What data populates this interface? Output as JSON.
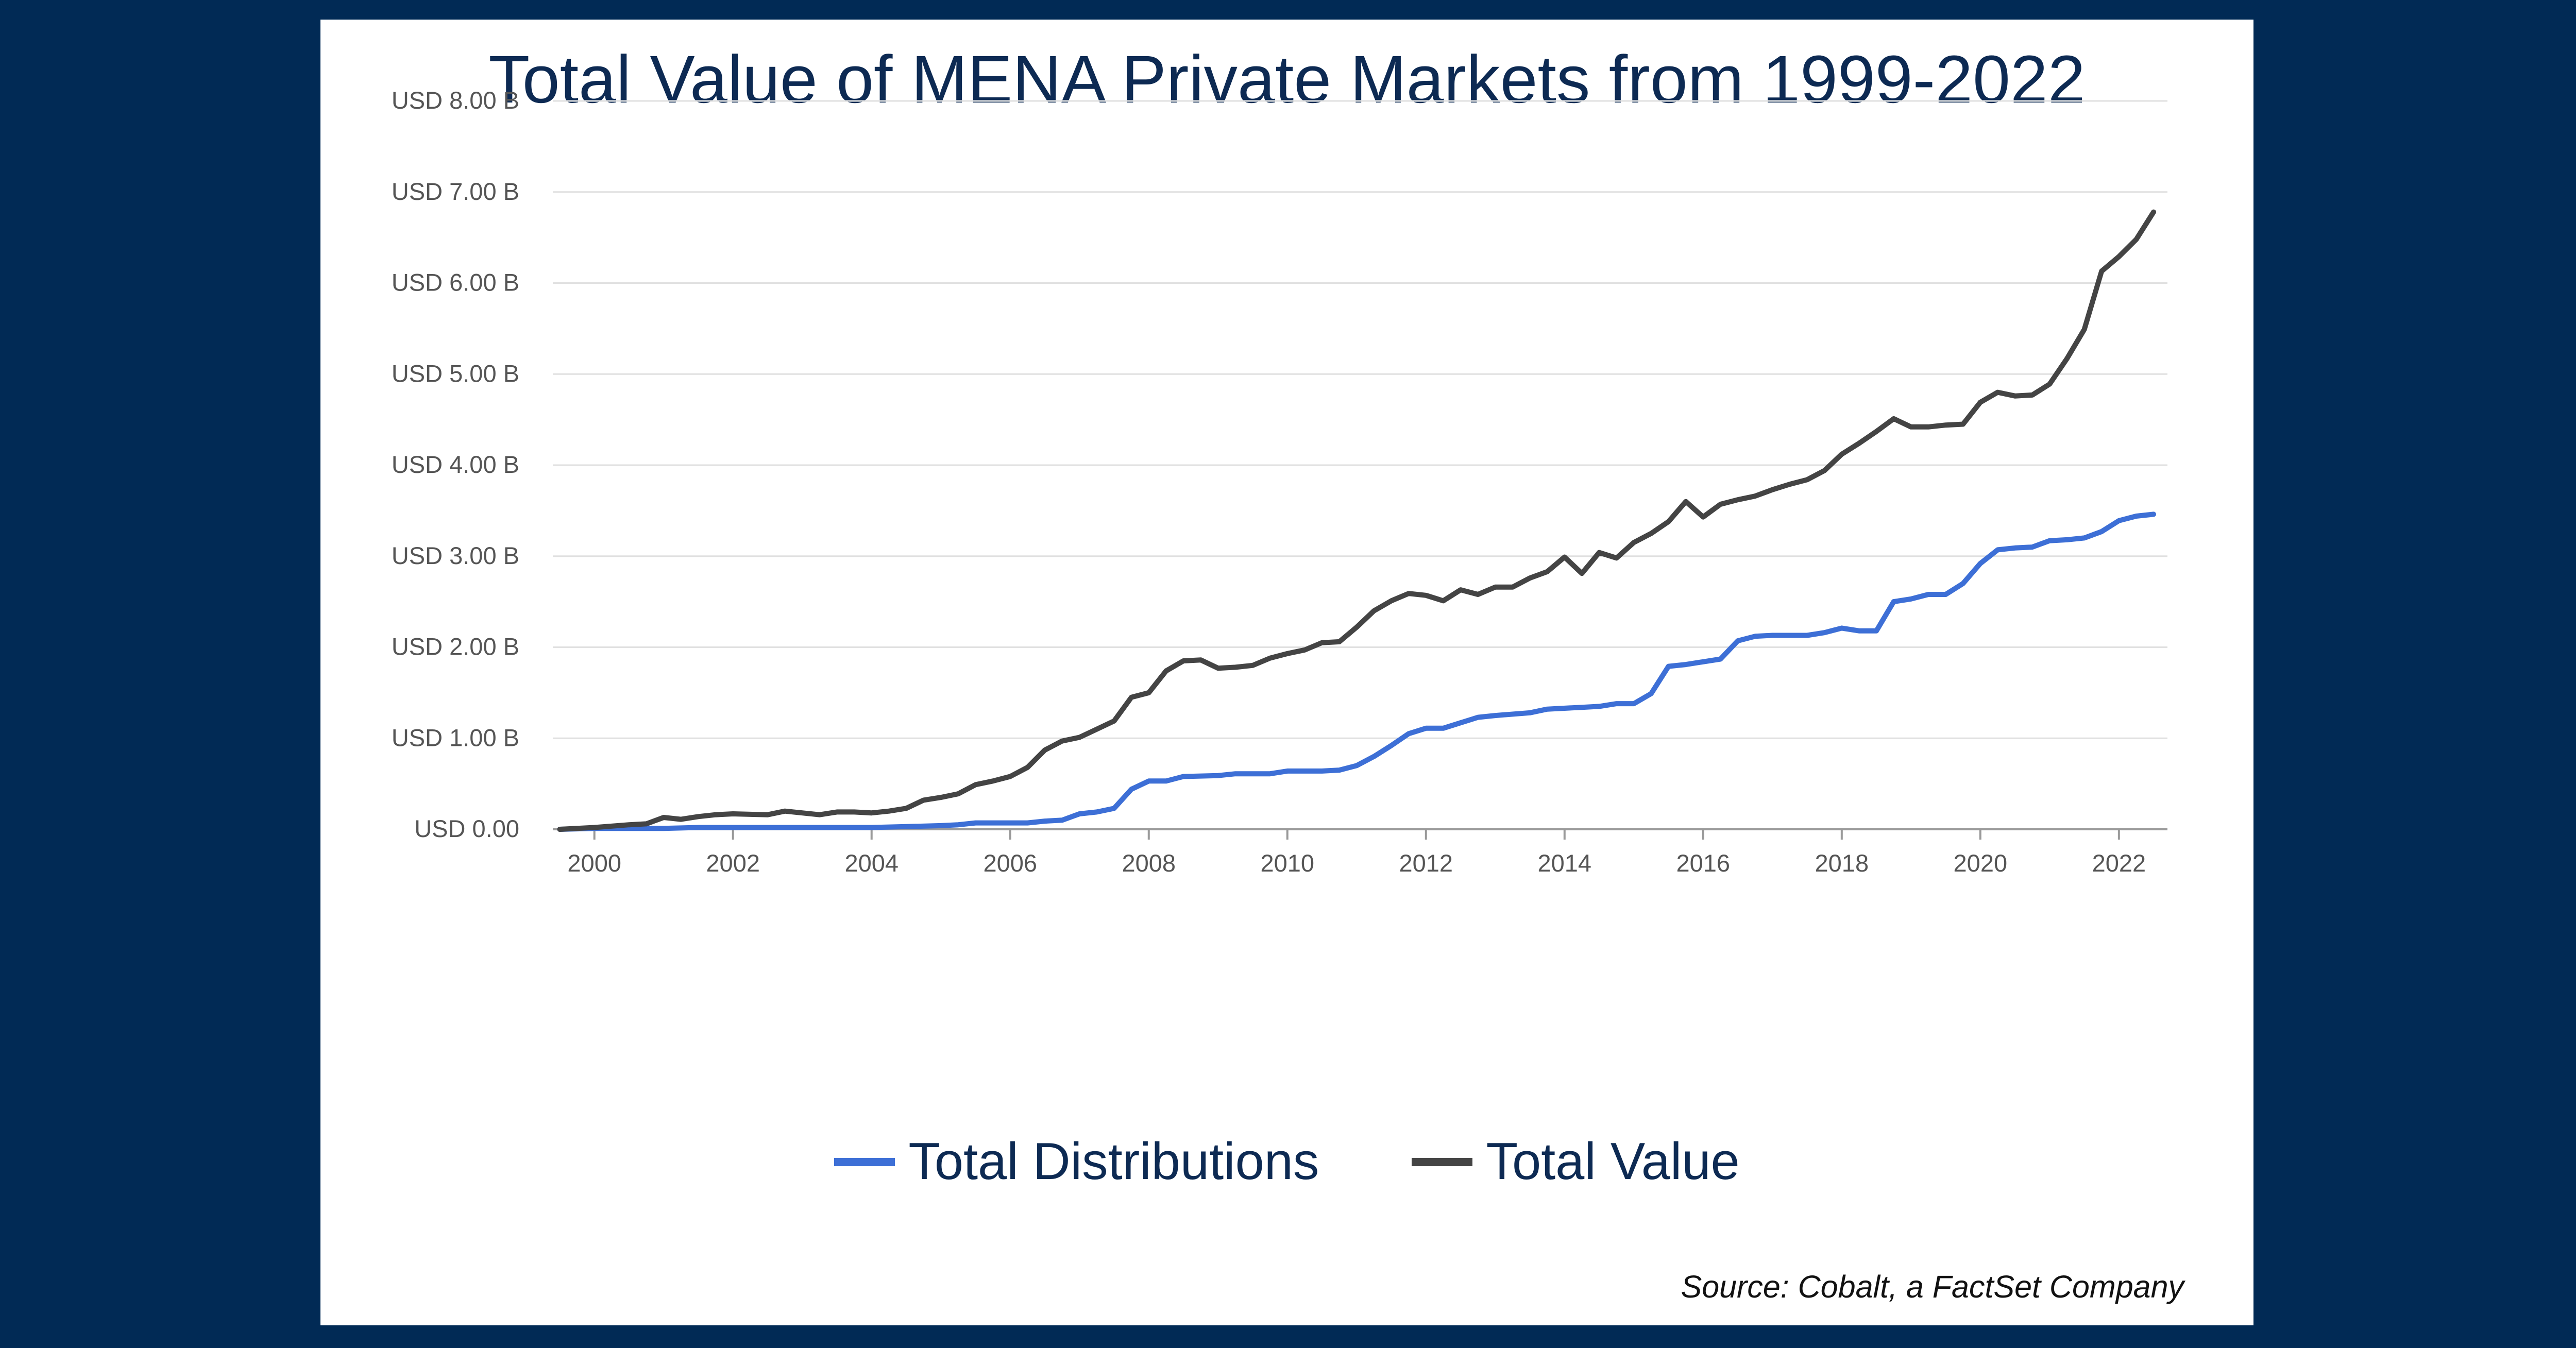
{
  "colors": {
    "background": "#012a55",
    "panel": "#ffffff",
    "title": "#0d2a53",
    "total_distributions": "#3d6fd6",
    "total_value": "#444444",
    "grid": "#e0e0e0",
    "tick_text": "#555555"
  },
  "source": "Source: Cobalt, a FactSet Company",
  "chart_data": {
    "type": "line",
    "title": "Total Value of MENA Private Markets from 1999-2022",
    "xlabel": "",
    "ylabel": "",
    "xlim": [
      1999.4,
      2022.7
    ],
    "ylim": [
      0,
      8
    ],
    "x_ticks": [
      2000,
      2002,
      2004,
      2006,
      2008,
      2010,
      2012,
      2014,
      2016,
      2018,
      2020,
      2022
    ],
    "x_tick_labels": [
      "2000",
      "2002",
      "2004",
      "2006",
      "2008",
      "2010",
      "2012",
      "2014",
      "2016",
      "2018",
      "2020",
      "2022"
    ],
    "y_ticks": [
      0,
      1,
      2,
      3,
      4,
      5,
      6,
      7,
      8
    ],
    "y_tick_labels": [
      "USD 0.00",
      "USD 1.00 B",
      "USD 2.00 B",
      "USD 3.00 B",
      "USD 4.00 B",
      "USD 5.00 B",
      "USD 6.00 B",
      "USD 7.00 B",
      "USD 8.00 B"
    ],
    "grid": true,
    "legend_position": "bottom",
    "series": [
      {
        "name": "Total Distributions",
        "color": "#3d6fd6",
        "points": [
          [
            1999.5,
            0.0
          ],
          [
            2000.0,
            0.01
          ],
          [
            2000.5,
            0.01
          ],
          [
            2001.0,
            0.01
          ],
          [
            2001.5,
            0.02
          ],
          [
            2002.0,
            0.02
          ],
          [
            2002.5,
            0.02
          ],
          [
            2003.0,
            0.02
          ],
          [
            2003.5,
            0.02
          ],
          [
            2004.0,
            0.02
          ],
          [
            2004.5,
            0.03
          ],
          [
            2005.0,
            0.04
          ],
          [
            2005.25,
            0.05
          ],
          [
            2005.5,
            0.07
          ],
          [
            2006.0,
            0.07
          ],
          [
            2006.25,
            0.07
          ],
          [
            2006.5,
            0.09
          ],
          [
            2006.75,
            0.1
          ],
          [
            2007.0,
            0.17
          ],
          [
            2007.25,
            0.19
          ],
          [
            2007.5,
            0.23
          ],
          [
            2007.75,
            0.44
          ],
          [
            2008.0,
            0.53
          ],
          [
            2008.25,
            0.53
          ],
          [
            2008.5,
            0.58
          ],
          [
            2009.0,
            0.59
          ],
          [
            2009.25,
            0.61
          ],
          [
            2009.75,
            0.61
          ],
          [
            2010.0,
            0.64
          ],
          [
            2010.5,
            0.64
          ],
          [
            2010.75,
            0.65
          ],
          [
            2011.0,
            0.7
          ],
          [
            2011.25,
            0.8
          ],
          [
            2011.5,
            0.92
          ],
          [
            2011.75,
            1.05
          ],
          [
            2012.0,
            1.11
          ],
          [
            2012.25,
            1.11
          ],
          [
            2012.5,
            1.17
          ],
          [
            2012.75,
            1.23
          ],
          [
            2013.0,
            1.25
          ],
          [
            2013.5,
            1.28
          ],
          [
            2013.75,
            1.32
          ],
          [
            2014.25,
            1.34
          ],
          [
            2014.5,
            1.35
          ],
          [
            2014.75,
            1.38
          ],
          [
            2015.0,
            1.38
          ],
          [
            2015.25,
            1.49
          ],
          [
            2015.5,
            1.79
          ],
          [
            2015.75,
            1.81
          ],
          [
            2016.0,
            1.84
          ],
          [
            2016.25,
            1.87
          ],
          [
            2016.5,
            2.07
          ],
          [
            2016.75,
            2.12
          ],
          [
            2017.0,
            2.13
          ],
          [
            2017.5,
            2.13
          ],
          [
            2017.75,
            2.16
          ],
          [
            2018.0,
            2.21
          ],
          [
            2018.25,
            2.18
          ],
          [
            2018.5,
            2.18
          ],
          [
            2018.75,
            2.5
          ],
          [
            2019.0,
            2.53
          ],
          [
            2019.25,
            2.58
          ],
          [
            2019.5,
            2.58
          ],
          [
            2019.75,
            2.7
          ],
          [
            2020.0,
            2.92
          ],
          [
            2020.25,
            3.07
          ],
          [
            2020.5,
            3.09
          ],
          [
            2020.75,
            3.1
          ],
          [
            2021.0,
            3.17
          ],
          [
            2021.25,
            3.18
          ],
          [
            2021.5,
            3.2
          ],
          [
            2021.75,
            3.27
          ],
          [
            2022.0,
            3.39
          ],
          [
            2022.25,
            3.44
          ],
          [
            2022.5,
            3.46
          ]
        ]
      },
      {
        "name": "Total Value",
        "color": "#444444",
        "points": [
          [
            1999.5,
            0.0
          ],
          [
            2000.0,
            0.02
          ],
          [
            2000.5,
            0.05
          ],
          [
            2000.75,
            0.06
          ],
          [
            2001.0,
            0.13
          ],
          [
            2001.25,
            0.11
          ],
          [
            2001.5,
            0.14
          ],
          [
            2001.75,
            0.16
          ],
          [
            2002.0,
            0.17
          ],
          [
            2002.5,
            0.16
          ],
          [
            2002.75,
            0.2
          ],
          [
            2003.25,
            0.16
          ],
          [
            2003.5,
            0.19
          ],
          [
            2003.75,
            0.19
          ],
          [
            2004.0,
            0.18
          ],
          [
            2004.25,
            0.2
          ],
          [
            2004.5,
            0.23
          ],
          [
            2004.75,
            0.32
          ],
          [
            2005.0,
            0.35
          ],
          [
            2005.25,
            0.39
          ],
          [
            2005.5,
            0.49
          ],
          [
            2005.75,
            0.53
          ],
          [
            2006.0,
            0.58
          ],
          [
            2006.25,
            0.68
          ],
          [
            2006.5,
            0.87
          ],
          [
            2006.75,
            0.97
          ],
          [
            2007.0,
            1.01
          ],
          [
            2007.25,
            1.1
          ],
          [
            2007.5,
            1.19
          ],
          [
            2007.75,
            1.45
          ],
          [
            2008.0,
            1.5
          ],
          [
            2008.25,
            1.74
          ],
          [
            2008.5,
            1.85
          ],
          [
            2008.75,
            1.86
          ],
          [
            2009.0,
            1.77
          ],
          [
            2009.25,
            1.78
          ],
          [
            2009.5,
            1.8
          ],
          [
            2009.75,
            1.88
          ],
          [
            2010.0,
            1.93
          ],
          [
            2010.25,
            1.97
          ],
          [
            2010.5,
            2.05
          ],
          [
            2010.75,
            2.06
          ],
          [
            2011.0,
            2.22
          ],
          [
            2011.25,
            2.4
          ],
          [
            2011.5,
            2.51
          ],
          [
            2011.75,
            2.59
          ],
          [
            2012.0,
            2.57
          ],
          [
            2012.25,
            2.51
          ],
          [
            2012.5,
            2.63
          ],
          [
            2012.75,
            2.58
          ],
          [
            2013.0,
            2.66
          ],
          [
            2013.25,
            2.66
          ],
          [
            2013.5,
            2.76
          ],
          [
            2013.75,
            2.83
          ],
          [
            2014.0,
            2.99
          ],
          [
            2014.25,
            2.81
          ],
          [
            2014.5,
            3.04
          ],
          [
            2014.75,
            2.98
          ],
          [
            2015.0,
            3.15
          ],
          [
            2015.25,
            3.25
          ],
          [
            2015.5,
            3.38
          ],
          [
            2015.75,
            3.6
          ],
          [
            2016.0,
            3.43
          ],
          [
            2016.25,
            3.57
          ],
          [
            2016.5,
            3.62
          ],
          [
            2016.75,
            3.66
          ],
          [
            2017.0,
            3.73
          ],
          [
            2017.25,
            3.79
          ],
          [
            2017.5,
            3.84
          ],
          [
            2017.75,
            3.94
          ],
          [
            2018.0,
            4.12
          ],
          [
            2018.25,
            4.24
          ],
          [
            2018.5,
            4.37
          ],
          [
            2018.75,
            4.51
          ],
          [
            2019.0,
            4.42
          ],
          [
            2019.25,
            4.42
          ],
          [
            2019.5,
            4.44
          ],
          [
            2019.75,
            4.45
          ],
          [
            2020.0,
            4.69
          ],
          [
            2020.25,
            4.8
          ],
          [
            2020.5,
            4.76
          ],
          [
            2020.75,
            4.77
          ],
          [
            2021.0,
            4.89
          ],
          [
            2021.25,
            5.17
          ],
          [
            2021.5,
            5.49
          ],
          [
            2021.75,
            6.13
          ],
          [
            2022.0,
            6.29
          ],
          [
            2022.25,
            6.48
          ],
          [
            2022.5,
            6.78
          ]
        ]
      }
    ]
  }
}
